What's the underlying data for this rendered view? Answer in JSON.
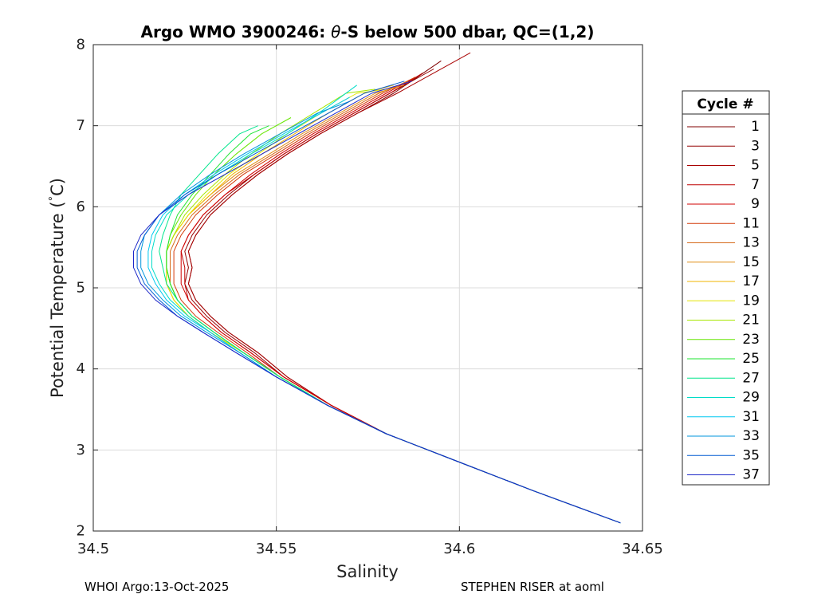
{
  "chart_data": {
    "type": "line",
    "title_prefix": "Argo WMO 3900246: ",
    "title_theta": "θ",
    "title_suffix": "-S below 500 dbar,  QC=(1,2)",
    "xlabel": "Salinity",
    "ylabel_main": "Potential Temperature (",
    "ylabel_deg": "°",
    "ylabel_end": "C)",
    "xlim": [
      34.5,
      34.65
    ],
    "ylim": [
      2,
      8
    ],
    "xticks": [
      "34.5",
      "34.55",
      "34.6",
      "34.65"
    ],
    "yticks": [
      "2",
      "3",
      "4",
      "5",
      "6",
      "7",
      "8"
    ],
    "grid": true,
    "legend": {
      "title": "Cycle #",
      "placement": "right-outside",
      "entries": [
        "1",
        "3",
        "5",
        "7",
        "9",
        "11",
        "13",
        "15",
        "17",
        "19",
        "21",
        "23",
        "25",
        "27",
        "29",
        "31",
        "33",
        "35",
        "37"
      ]
    },
    "series": [
      {
        "name": "1",
        "color": "#800000",
        "x": [
          34.644,
          34.62,
          34.6,
          34.58,
          34.565,
          34.553,
          34.545,
          34.537,
          34.532,
          34.528,
          34.526,
          34.527,
          34.526,
          34.528,
          34.532,
          34.538,
          34.545,
          34.553,
          34.562,
          34.572,
          34.582,
          34.595
        ],
        "y": [
          2.1,
          2.5,
          2.85,
          3.2,
          3.55,
          3.9,
          4.2,
          4.45,
          4.65,
          4.85,
          5.05,
          5.25,
          5.45,
          5.65,
          5.9,
          6.15,
          6.4,
          6.65,
          6.9,
          7.15,
          7.4,
          7.8
        ]
      },
      {
        "name": "3",
        "color": "#940000",
        "x": [
          34.644,
          34.62,
          34.6,
          34.58,
          34.565,
          34.552,
          34.544,
          34.536,
          34.531,
          34.527,
          34.525,
          34.526,
          34.525,
          34.527,
          34.531,
          34.537,
          34.544,
          34.552,
          34.561,
          34.571,
          34.581,
          34.593
        ],
        "y": [
          2.1,
          2.5,
          2.85,
          3.2,
          3.55,
          3.9,
          4.2,
          4.45,
          4.65,
          4.85,
          5.05,
          5.25,
          5.45,
          5.65,
          5.9,
          6.15,
          6.4,
          6.65,
          6.9,
          7.15,
          7.4,
          7.7
        ]
      },
      {
        "name": "5",
        "color": "#a80000",
        "x": [
          34.644,
          34.62,
          34.6,
          34.58,
          34.565,
          34.553,
          34.545,
          34.537,
          34.532,
          34.528,
          34.526,
          34.527,
          34.526,
          34.528,
          34.532,
          34.538,
          34.545,
          34.553,
          34.562,
          34.572,
          34.583,
          34.603
        ],
        "y": [
          2.1,
          2.5,
          2.85,
          3.2,
          3.55,
          3.9,
          4.2,
          4.45,
          4.65,
          4.85,
          5.05,
          5.25,
          5.45,
          5.65,
          5.9,
          6.15,
          6.4,
          6.65,
          6.9,
          7.15,
          7.4,
          7.9
        ]
      },
      {
        "name": "7",
        "color": "#bd0000",
        "x": [
          34.644,
          34.62,
          34.6,
          34.58,
          34.565,
          34.552,
          34.543,
          34.535,
          34.53,
          34.526,
          34.525,
          34.525,
          34.524,
          34.526,
          34.53,
          34.536,
          34.544,
          34.552,
          34.561,
          34.571,
          34.581,
          34.59
        ],
        "y": [
          2.1,
          2.5,
          2.85,
          3.2,
          3.55,
          3.9,
          4.2,
          4.45,
          4.65,
          4.85,
          5.05,
          5.25,
          5.45,
          5.65,
          5.9,
          6.15,
          6.4,
          6.65,
          6.9,
          7.15,
          7.4,
          7.65
        ]
      },
      {
        "name": "9",
        "color": "#d10000",
        "x": [
          34.644,
          34.62,
          34.6,
          34.58,
          34.565,
          34.552,
          34.543,
          34.535,
          34.53,
          34.526,
          34.524,
          34.524,
          34.524,
          34.526,
          34.53,
          34.536,
          34.543,
          34.551,
          34.56,
          34.57,
          34.58,
          34.588
        ],
        "y": [
          2.1,
          2.5,
          2.85,
          3.2,
          3.55,
          3.9,
          4.2,
          4.45,
          4.65,
          4.85,
          5.05,
          5.25,
          5.45,
          5.65,
          5.9,
          6.15,
          6.4,
          6.65,
          6.9,
          7.15,
          7.4,
          7.6
        ]
      },
      {
        "name": "11",
        "color": "#d43c0a",
        "x": [
          34.644,
          34.62,
          34.6,
          34.58,
          34.564,
          34.551,
          34.542,
          34.534,
          34.528,
          34.524,
          34.522,
          34.522,
          34.522,
          34.524,
          34.528,
          34.534,
          34.541,
          34.55,
          34.559,
          34.569,
          34.579,
          34.588
        ],
        "y": [
          2.1,
          2.5,
          2.85,
          3.2,
          3.55,
          3.9,
          4.2,
          4.45,
          4.65,
          4.85,
          5.05,
          5.25,
          5.45,
          5.65,
          5.9,
          6.15,
          6.4,
          6.65,
          6.9,
          7.15,
          7.4,
          7.6
        ]
      },
      {
        "name": "13",
        "color": "#d66a1a",
        "x": [
          34.644,
          34.62,
          34.6,
          34.58,
          34.564,
          34.551,
          34.541,
          34.533,
          34.527,
          34.523,
          34.521,
          34.521,
          34.521,
          34.523,
          34.527,
          34.533,
          34.54,
          34.549,
          34.558,
          34.568,
          34.578,
          34.586
        ],
        "y": [
          2.1,
          2.5,
          2.85,
          3.2,
          3.55,
          3.9,
          4.2,
          4.45,
          4.65,
          4.85,
          5.05,
          5.25,
          5.45,
          5.65,
          5.9,
          6.15,
          6.4,
          6.65,
          6.9,
          7.15,
          7.4,
          7.55
        ]
      },
      {
        "name": "15",
        "color": "#e08d14",
        "x": [
          34.644,
          34.62,
          34.6,
          34.58,
          34.564,
          34.551,
          34.541,
          34.532,
          34.526,
          34.522,
          34.52,
          34.52,
          34.52,
          34.522,
          34.526,
          34.532,
          34.539,
          34.548,
          34.557,
          34.567,
          34.577,
          34.585
        ],
        "y": [
          2.1,
          2.5,
          2.85,
          3.2,
          3.55,
          3.9,
          4.2,
          4.45,
          4.65,
          4.85,
          5.05,
          5.25,
          5.45,
          5.65,
          5.9,
          6.15,
          6.4,
          6.65,
          6.9,
          7.15,
          7.4,
          7.5
        ]
      },
      {
        "name": "17",
        "color": "#f0b400",
        "x": [
          34.644,
          34.62,
          34.6,
          34.58,
          34.564,
          34.551,
          34.541,
          34.532,
          34.526,
          34.522,
          34.52,
          34.52,
          34.52,
          34.522,
          34.526,
          34.532,
          34.538,
          34.546,
          34.555,
          34.564,
          34.574,
          34.582
        ],
        "y": [
          2.1,
          2.5,
          2.85,
          3.2,
          3.55,
          3.9,
          4.2,
          4.45,
          4.65,
          4.85,
          5.05,
          5.25,
          5.45,
          5.65,
          5.9,
          6.15,
          6.4,
          6.65,
          6.9,
          7.15,
          7.4,
          7.5
        ]
      },
      {
        "name": "19",
        "color": "#e6e600",
        "x": [
          34.644,
          34.62,
          34.6,
          34.58,
          34.564,
          34.551,
          34.541,
          34.532,
          34.526,
          34.522,
          34.52,
          34.52,
          34.52,
          34.522,
          34.526,
          34.531,
          34.537,
          34.545,
          34.553,
          34.562,
          34.572,
          34.58
        ],
        "y": [
          2.1,
          2.5,
          2.85,
          3.2,
          3.55,
          3.9,
          4.2,
          4.45,
          4.65,
          4.85,
          5.05,
          5.25,
          5.45,
          5.65,
          5.9,
          6.15,
          6.4,
          6.65,
          6.9,
          7.15,
          7.4,
          7.45
        ]
      },
      {
        "name": "21",
        "color": "#a6e600",
        "x": [
          34.644,
          34.62,
          34.6,
          34.58,
          34.564,
          34.551,
          34.541,
          34.533,
          34.527,
          34.523,
          34.521,
          34.52,
          34.52,
          34.522,
          34.525,
          34.53,
          34.536,
          34.543,
          34.551,
          34.56,
          34.569,
          34.577
        ],
        "y": [
          2.1,
          2.5,
          2.85,
          3.2,
          3.55,
          3.9,
          4.2,
          4.45,
          4.65,
          4.85,
          5.05,
          5.25,
          5.45,
          5.65,
          5.9,
          6.15,
          6.4,
          6.65,
          6.9,
          7.15,
          7.4,
          7.45
        ]
      },
      {
        "name": "23",
        "color": "#66e600",
        "x": [
          34.644,
          34.62,
          34.6,
          34.58,
          34.564,
          34.551,
          34.541,
          34.533,
          34.527,
          34.523,
          34.521,
          34.52,
          34.52,
          34.521,
          34.524,
          34.528,
          34.533,
          34.539,
          34.546,
          34.554
        ],
        "y": [
          2.1,
          2.5,
          2.85,
          3.2,
          3.55,
          3.9,
          4.2,
          4.45,
          4.65,
          4.85,
          5.05,
          5.25,
          5.45,
          5.65,
          5.9,
          6.15,
          6.4,
          6.65,
          6.9,
          7.1
        ]
      },
      {
        "name": "25",
        "color": "#1ee632",
        "x": [
          34.644,
          34.62,
          34.6,
          34.58,
          34.564,
          34.551,
          34.541,
          34.533,
          34.527,
          34.523,
          34.521,
          34.52,
          34.52,
          34.521,
          34.523,
          34.527,
          34.532,
          34.537,
          34.543,
          34.548
        ],
        "y": [
          2.1,
          2.5,
          2.85,
          3.2,
          3.55,
          3.9,
          4.2,
          4.45,
          4.65,
          4.85,
          5.05,
          5.25,
          5.45,
          5.65,
          5.9,
          6.15,
          6.4,
          6.65,
          6.9,
          7.0
        ]
      },
      {
        "name": "27",
        "color": "#00e68c",
        "x": [
          34.644,
          34.62,
          34.6,
          34.58,
          34.564,
          34.551,
          34.541,
          34.533,
          34.527,
          34.523,
          34.52,
          34.519,
          34.518,
          34.519,
          34.521,
          34.524,
          34.529,
          34.534,
          34.54,
          34.545
        ],
        "y": [
          2.1,
          2.5,
          2.85,
          3.2,
          3.55,
          3.9,
          4.2,
          4.45,
          4.65,
          4.85,
          5.05,
          5.25,
          5.45,
          5.65,
          5.9,
          6.15,
          6.4,
          6.65,
          6.9,
          7.0
        ]
      },
      {
        "name": "29",
        "color": "#00dcc8",
        "x": [
          34.644,
          34.62,
          34.6,
          34.58,
          34.564,
          34.55,
          34.54,
          34.532,
          34.526,
          34.521,
          34.518,
          34.516,
          34.516,
          34.517,
          34.52,
          34.526,
          34.534,
          34.543,
          34.553,
          34.563,
          34.572
        ],
        "y": [
          2.1,
          2.5,
          2.85,
          3.2,
          3.55,
          3.9,
          4.2,
          4.45,
          4.65,
          4.85,
          5.05,
          5.25,
          5.45,
          5.65,
          5.9,
          6.15,
          6.4,
          6.65,
          6.9,
          7.2,
          7.5
        ]
      },
      {
        "name": "31",
        "color": "#00c8f0",
        "x": [
          34.644,
          34.62,
          34.6,
          34.58,
          34.564,
          34.55,
          34.54,
          34.532,
          34.525,
          34.52,
          34.517,
          34.515,
          34.515,
          34.516,
          34.519,
          34.525,
          34.533,
          34.542,
          34.552,
          34.562,
          34.57
        ],
        "y": [
          2.1,
          2.5,
          2.85,
          3.2,
          3.55,
          3.9,
          4.2,
          4.45,
          4.65,
          4.85,
          5.05,
          5.25,
          5.45,
          5.65,
          5.9,
          6.15,
          6.4,
          6.65,
          6.9,
          7.15,
          7.35
        ]
      },
      {
        "name": "33",
        "color": "#0096dc",
        "x": [
          34.644,
          34.62,
          34.6,
          34.58,
          34.564,
          34.55,
          34.54,
          34.531,
          34.524,
          34.519,
          34.515,
          34.513,
          34.513,
          34.514,
          34.518,
          34.524,
          34.532,
          34.541,
          34.551,
          34.561,
          34.57
        ],
        "y": [
          2.1,
          2.5,
          2.85,
          3.2,
          3.55,
          3.9,
          4.2,
          4.45,
          4.65,
          4.85,
          5.05,
          5.25,
          5.45,
          5.65,
          5.9,
          6.15,
          6.4,
          6.65,
          6.9,
          7.15,
          7.3
        ]
      },
      {
        "name": "35",
        "color": "#005ad2",
        "x": [
          34.644,
          34.62,
          34.6,
          34.58,
          34.564,
          34.55,
          34.539,
          34.53,
          34.523,
          34.518,
          34.514,
          34.512,
          34.512,
          34.514,
          34.518,
          34.525,
          34.534,
          34.544,
          34.554,
          34.564,
          34.574,
          34.585
        ],
        "y": [
          2.1,
          2.5,
          2.85,
          3.2,
          3.55,
          3.9,
          4.2,
          4.45,
          4.65,
          4.85,
          5.05,
          5.25,
          5.45,
          5.65,
          5.9,
          6.15,
          6.4,
          6.65,
          6.9,
          7.15,
          7.4,
          7.55
        ]
      },
      {
        "name": "37",
        "color": "#1e28c8",
        "x": [
          34.644,
          34.62,
          34.6,
          34.58,
          34.564,
          34.55,
          34.539,
          34.53,
          34.523,
          34.517,
          34.513,
          34.511,
          34.511,
          34.513,
          34.518,
          34.526,
          34.536,
          34.546,
          34.556,
          34.566,
          34.576,
          34.587
        ],
        "y": [
          2.1,
          2.5,
          2.85,
          3.2,
          3.55,
          3.9,
          4.2,
          4.45,
          4.65,
          4.85,
          5.05,
          5.25,
          5.45,
          5.65,
          5.9,
          6.15,
          6.4,
          6.65,
          6.9,
          7.15,
          7.4,
          7.55
        ]
      }
    ]
  },
  "footer": {
    "left": "WHOI Argo:13-Oct-2025",
    "right": "STEPHEN RISER at aoml"
  }
}
